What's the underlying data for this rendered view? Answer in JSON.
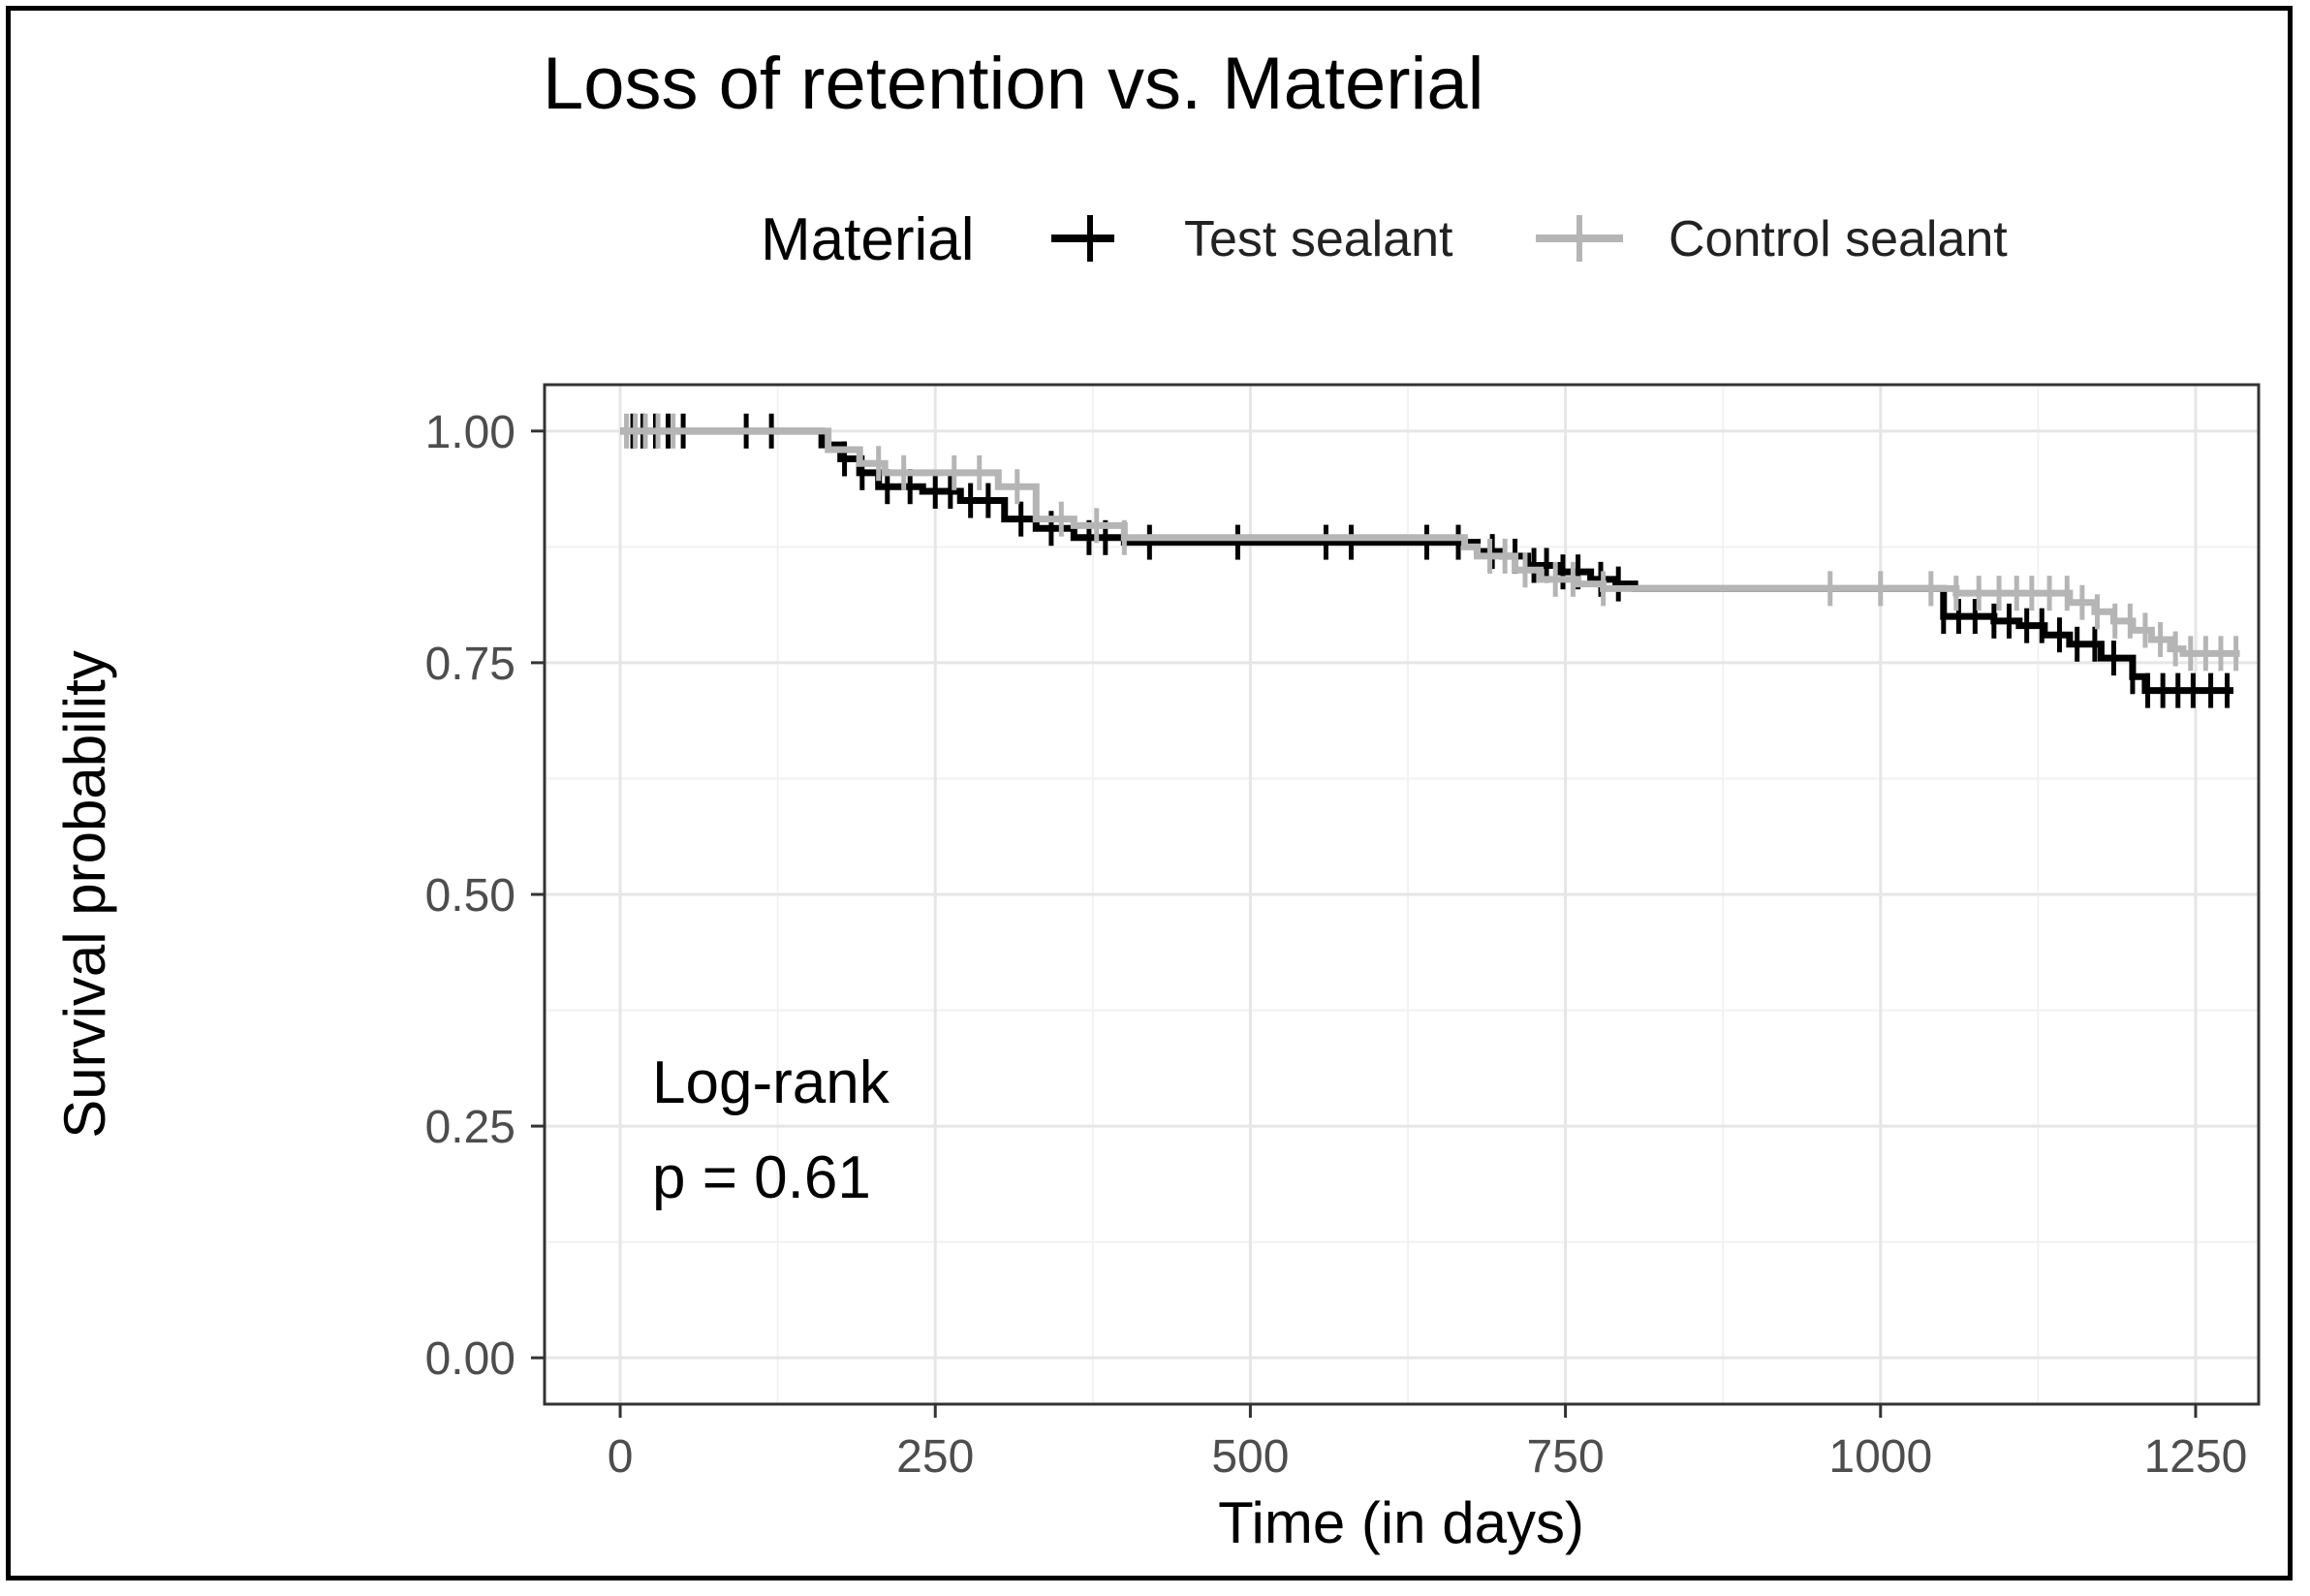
{
  "chart_data": {
    "type": "line",
    "title": "Loss of retention vs. Material",
    "xlabel": "Time (in days)",
    "ylabel": "Survival probability",
    "xlim": [
      -60,
      1300
    ],
    "ylim": [
      -0.05,
      1.05
    ],
    "x_ticks": [
      "0",
      "250",
      "500",
      "750",
      "1000",
      "1250"
    ],
    "y_ticks": [
      "0.00",
      "0.25",
      "0.50",
      "0.75",
      "1.00"
    ],
    "grid": true,
    "legend": {
      "title": "Material",
      "position": "top",
      "entries": [
        "Test sealant",
        "Control sealant"
      ]
    },
    "series": [
      {
        "name": "Test sealant",
        "color": "#000000",
        "steps": [
          [
            0,
            1.0
          ],
          [
            160,
            0.985
          ],
          [
            175,
            0.97
          ],
          [
            190,
            0.955
          ],
          [
            205,
            0.94
          ],
          [
            240,
            0.935
          ],
          [
            270,
            0.925
          ],
          [
            305,
            0.905
          ],
          [
            330,
            0.895
          ],
          [
            360,
            0.885
          ],
          [
            400,
            0.88
          ],
          [
            680,
            0.87
          ],
          [
            700,
            0.865
          ],
          [
            720,
            0.855
          ],
          [
            745,
            0.848
          ],
          [
            770,
            0.84
          ],
          [
            790,
            0.835
          ],
          [
            805,
            0.83
          ],
          [
            1050,
            0.8
          ],
          [
            1090,
            0.795
          ],
          [
            1110,
            0.79
          ],
          [
            1130,
            0.78
          ],
          [
            1150,
            0.77
          ],
          [
            1175,
            0.755
          ],
          [
            1200,
            0.735
          ],
          [
            1210,
            0.72
          ],
          [
            1280,
            0.72
          ]
        ],
        "censor_x": [
          10,
          18,
          28,
          38,
          50,
          100,
          120,
          178,
          192,
          212,
          230,
          250,
          262,
          278,
          292,
          318,
          342,
          372,
          385,
          420,
          490,
          560,
          580,
          640,
          665,
          692,
          710,
          725,
          735,
          748,
          760,
          778,
          792,
          1050,
          1062,
          1075,
          1090,
          1102,
          1116,
          1128,
          1142,
          1156,
          1170,
          1185,
          1200,
          1212,
          1224,
          1236,
          1248,
          1262,
          1275
        ]
      },
      {
        "name": "Control sealant",
        "color": "#b5b5b5",
        "steps": [
          [
            0,
            1.0
          ],
          [
            165,
            0.98
          ],
          [
            190,
            0.965
          ],
          [
            210,
            0.955
          ],
          [
            300,
            0.94
          ],
          [
            330,
            0.905
          ],
          [
            360,
            0.898
          ],
          [
            400,
            0.885
          ],
          [
            670,
            0.875
          ],
          [
            680,
            0.865
          ],
          [
            710,
            0.85
          ],
          [
            730,
            0.84
          ],
          [
            760,
            0.835
          ],
          [
            780,
            0.83
          ],
          [
            1060,
            0.825
          ],
          [
            1150,
            0.815
          ],
          [
            1170,
            0.805
          ],
          [
            1185,
            0.795
          ],
          [
            1200,
            0.785
          ],
          [
            1215,
            0.775
          ],
          [
            1230,
            0.765
          ],
          [
            1240,
            0.76
          ],
          [
            1285,
            0.76
          ]
        ],
        "censor_x": [
          5,
          12,
          20,
          30,
          42,
          205,
          225,
          265,
          285,
          315,
          350,
          378,
          400,
          690,
          702,
          718,
          742,
          756,
          780,
          960,
          1000,
          1040,
          1060,
          1078,
          1094,
          1108,
          1120,
          1134,
          1148,
          1160,
          1172,
          1186,
          1198,
          1210,
          1222,
          1234,
          1246,
          1258,
          1270,
          1282
        ]
      }
    ],
    "annotation": {
      "line1": "Log-rank",
      "line2": "p = 0.61"
    }
  }
}
